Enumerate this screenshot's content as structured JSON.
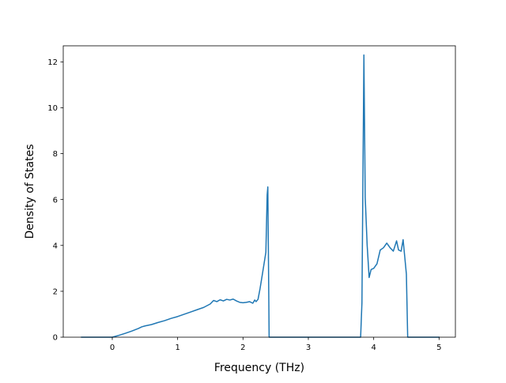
{
  "chart_data": {
    "type": "line",
    "title": "",
    "xlabel": "Frequency (THz)",
    "ylabel": "Density of States",
    "xlim": [
      -0.75,
      5.25
    ],
    "ylim": [
      0,
      12.7
    ],
    "xticks": [
      0,
      1,
      2,
      3,
      4,
      5
    ],
    "yticks": [
      0,
      2,
      4,
      6,
      8,
      10,
      12
    ],
    "xtick_labels": [
      "0",
      "1",
      "2",
      "3",
      "4",
      "5"
    ],
    "ytick_labels": [
      "0",
      "2",
      "4",
      "6",
      "8",
      "10",
      "12"
    ],
    "grid": false,
    "legend": "none",
    "series": [
      {
        "color": "#1f77b4",
        "x": [
          -0.47,
          0.0,
          0.1,
          0.2,
          0.3,
          0.4,
          0.45,
          0.5,
          0.6,
          0.7,
          0.8,
          0.9,
          1.0,
          1.1,
          1.2,
          1.3,
          1.4,
          1.5,
          1.55,
          1.6,
          1.65,
          1.7,
          1.75,
          1.8,
          1.85,
          1.9,
          1.95,
          2.0,
          2.05,
          2.1,
          2.15,
          2.18,
          2.2,
          2.23,
          2.26,
          2.3,
          2.35,
          2.37,
          2.38,
          2.4,
          2.45,
          3.0,
          3.5,
          3.8,
          3.82,
          3.85,
          3.87,
          3.9,
          3.93,
          3.96,
          4.0,
          4.05,
          4.1,
          4.15,
          4.2,
          4.25,
          4.3,
          4.35,
          4.38,
          4.42,
          4.45,
          4.5,
          4.52,
          4.55,
          5.0
        ],
        "y": [
          0,
          0,
          0.08,
          0.17,
          0.27,
          0.38,
          0.45,
          0.49,
          0.55,
          0.64,
          0.72,
          0.82,
          0.9,
          1.0,
          1.1,
          1.2,
          1.3,
          1.45,
          1.6,
          1.55,
          1.63,
          1.58,
          1.65,
          1.62,
          1.66,
          1.58,
          1.52,
          1.5,
          1.52,
          1.55,
          1.48,
          1.62,
          1.55,
          1.65,
          2.1,
          2.8,
          3.7,
          6.2,
          6.55,
          0,
          0,
          0,
          0,
          0,
          1.5,
          12.3,
          6.1,
          4.0,
          2.6,
          2.95,
          3.0,
          3.2,
          3.8,
          3.9,
          4.1,
          3.9,
          3.75,
          4.2,
          3.8,
          3.75,
          4.25,
          2.75,
          0,
          0,
          0
        ]
      }
    ]
  }
}
